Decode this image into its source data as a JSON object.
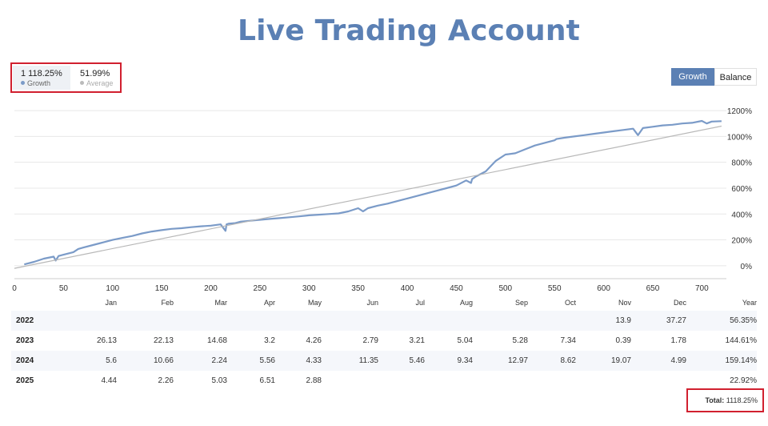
{
  "title": "Live Trading Account",
  "stats": {
    "growth_value": "1 118.25%",
    "growth_label": "Growth",
    "average_value": "51.99%",
    "average_label": "Average"
  },
  "toggles": {
    "growth": "Growth",
    "balance": "Balance"
  },
  "colors": {
    "accent": "#5b80b4",
    "growth_line": "#7b9bc8",
    "average_line": "#b8b8b8",
    "highlight_border": "#d1202f"
  },
  "chart_data": {
    "type": "line",
    "title": "",
    "xlabel": "",
    "ylabel": "",
    "xlim": [
      0,
      725
    ],
    "ylim": [
      -100,
      1250
    ],
    "x_ticks": [
      0,
      50,
      100,
      150,
      200,
      250,
      300,
      350,
      400,
      450,
      500,
      550,
      600,
      650,
      700
    ],
    "y_ticks": [
      "0%",
      "200%",
      "400%",
      "600%",
      "800%",
      "1000%",
      "1200%"
    ],
    "y_tick_values": [
      0,
      200,
      400,
      600,
      800,
      1000,
      1200
    ],
    "grid": true,
    "series": [
      {
        "name": "Growth",
        "x": [
          10,
          20,
          30,
          40,
          42,
          45,
          50,
          60,
          65,
          70,
          80,
          90,
          100,
          110,
          120,
          130,
          140,
          150,
          160,
          170,
          180,
          190,
          200,
          210,
          215,
          216,
          218,
          225,
          230,
          240,
          250,
          260,
          270,
          280,
          290,
          300,
          310,
          320,
          330,
          340,
          350,
          355,
          357,
          360,
          370,
          380,
          390,
          400,
          410,
          420,
          430,
          440,
          450,
          460,
          465,
          466,
          470,
          480,
          490,
          500,
          510,
          520,
          530,
          540,
          550,
          552,
          560,
          570,
          580,
          590,
          600,
          610,
          620,
          630,
          635,
          640,
          650,
          660,
          670,
          680,
          690,
          700,
          705,
          710,
          720
        ],
        "y": [
          10,
          30,
          55,
          70,
          40,
          75,
          85,
          105,
          130,
          140,
          160,
          180,
          200,
          215,
          230,
          250,
          265,
          275,
          285,
          290,
          298,
          305,
          310,
          320,
          270,
          320,
          325,
          330,
          340,
          348,
          355,
          362,
          368,
          375,
          382,
          390,
          395,
          400,
          405,
          420,
          445,
          420,
          430,
          445,
          465,
          480,
          500,
          520,
          540,
          560,
          580,
          600,
          620,
          660,
          640,
          670,
          690,
          730,
          810,
          860,
          870,
          900,
          930,
          950,
          970,
          980,
          990,
          1000,
          1010,
          1020,
          1030,
          1040,
          1050,
          1060,
          1010,
          1065,
          1075,
          1085,
          1090,
          1100,
          1105,
          1120,
          1100,
          1115,
          1118
        ]
      },
      {
        "name": "Average",
        "x": [
          0,
          720
        ],
        "y": [
          -20,
          1080
        ]
      }
    ]
  },
  "table": {
    "months": [
      "Jan",
      "Feb",
      "Mar",
      "Apr",
      "May",
      "Jun",
      "Jul",
      "Aug",
      "Sep",
      "Oct",
      "Nov",
      "Dec",
      "Year"
    ],
    "rows": [
      {
        "year": "2022",
        "values": [
          "",
          "",
          "",
          "",
          "",
          "",
          "",
          "",
          "",
          "",
          "13.9",
          "37.27",
          "56.35%"
        ]
      },
      {
        "year": "2023",
        "values": [
          "26.13",
          "22.13",
          "14.68",
          "3.2",
          "4.26",
          "2.79",
          "3.21",
          "5.04",
          "5.28",
          "7.34",
          "0.39",
          "1.78",
          "144.61%"
        ]
      },
      {
        "year": "2024",
        "values": [
          "5.6",
          "10.66",
          "2.24",
          "5.56",
          "4.33",
          "11.35",
          "5.46",
          "9.34",
          "12.97",
          "8.62",
          "19.07",
          "4.99",
          "159.14%"
        ]
      },
      {
        "year": "2025",
        "values": [
          "4.44",
          "2.26",
          "5.03",
          "6.51",
          "2.88",
          "",
          "",
          "",
          "",
          "",
          "",
          "",
          "22.92%"
        ]
      }
    ],
    "total_label": "Total:",
    "total_value": "1118.25%"
  }
}
